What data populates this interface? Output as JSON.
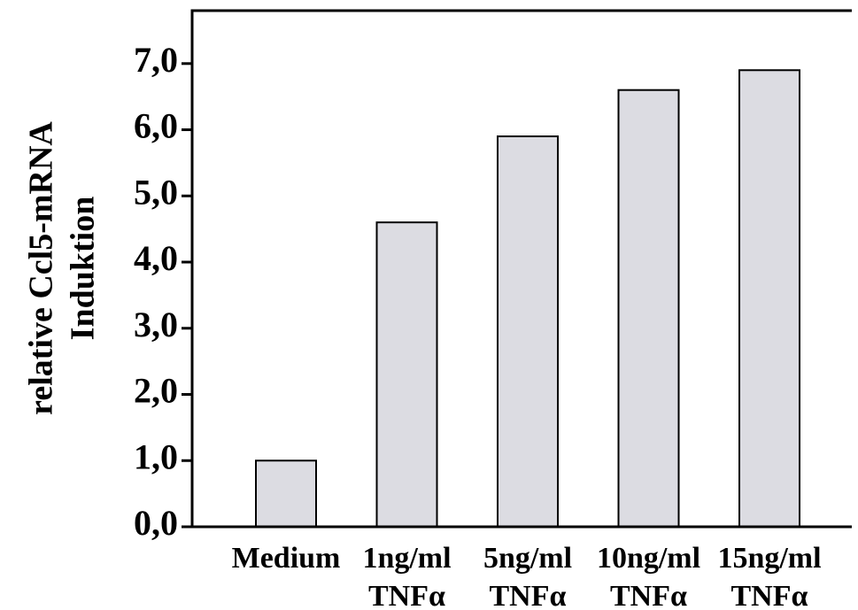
{
  "chart_data": {
    "type": "bar",
    "title": "",
    "xlabel": "",
    "ylabel_lines": [
      "relative Ccl5-mRNA",
      "Induktion"
    ],
    "categories": [
      {
        "lines": [
          "Medium"
        ]
      },
      {
        "lines": [
          "1ng/ml",
          "TNFα"
        ]
      },
      {
        "lines": [
          "5ng/ml",
          "TNFα"
        ]
      },
      {
        "lines": [
          "10ng/ml",
          "TNFα"
        ]
      },
      {
        "lines": [
          "15ng/ml",
          "TNFα"
        ]
      }
    ],
    "values": [
      1.0,
      4.6,
      5.9,
      6.6,
      6.9
    ],
    "ylim": [
      0,
      7.8
    ],
    "yticks": [
      0,
      1,
      2,
      3,
      4,
      5,
      6,
      7
    ],
    "ytick_labels": [
      "0,0",
      "1,0",
      "2,0",
      "3,0",
      "4,0",
      "5,0",
      "6,0",
      "7,0"
    ],
    "grid": false,
    "legend": "none",
    "colors": {
      "bar_fill": "#dcdce2",
      "bar_stroke": "#000000",
      "axis": "#000000"
    }
  }
}
